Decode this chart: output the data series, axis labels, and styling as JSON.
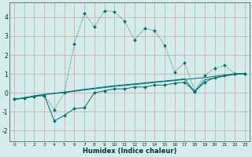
{
  "xlabel": "Humidex (Indice chaleur)",
  "bg_color": "#d4ecea",
  "grid_color": "#c8a8a8",
  "line_color": "#007070",
  "xlim": [
    -0.5,
    23.5
  ],
  "ylim": [
    -2.6,
    4.8
  ],
  "xticks": [
    0,
    1,
    2,
    3,
    4,
    5,
    6,
    7,
    8,
    9,
    10,
    11,
    12,
    13,
    14,
    15,
    16,
    17,
    18,
    19,
    20,
    21,
    22,
    23
  ],
  "yticks": [
    -2,
    -1,
    0,
    1,
    2,
    3,
    4
  ],
  "s1_x": [
    0,
    1,
    2,
    3,
    4,
    5,
    6,
    7,
    8,
    9,
    10,
    11,
    12,
    13,
    14,
    15,
    16,
    17,
    18,
    19,
    20,
    21,
    22,
    23
  ],
  "s1_y": [
    -0.35,
    -0.3,
    -0.2,
    -0.15,
    -0.9,
    0.0,
    2.6,
    4.2,
    3.5,
    4.35,
    4.3,
    3.8,
    2.8,
    3.4,
    3.3,
    2.5,
    1.1,
    1.6,
    0.1,
    0.9,
    1.3,
    1.45,
    1.0,
    1.0
  ],
  "s2_x": [
    0,
    1,
    2,
    3,
    4,
    5,
    6,
    7,
    8,
    9,
    10,
    11,
    12,
    13,
    14,
    15,
    16,
    17,
    18,
    19,
    20,
    21,
    22,
    23
  ],
  "s2_y": [
    -0.35,
    -0.3,
    -0.2,
    -0.15,
    -1.5,
    -1.2,
    -0.85,
    -0.8,
    0.0,
    0.1,
    0.2,
    0.2,
    0.3,
    0.3,
    0.4,
    0.4,
    0.5,
    0.55,
    0.05,
    0.55,
    0.8,
    0.9,
    1.0,
    1.0
  ],
  "s3_x": [
    0,
    1,
    2,
    3,
    4,
    5,
    6,
    7,
    8,
    9,
    10,
    11,
    12,
    13,
    14,
    15,
    16,
    17,
    18,
    19,
    20,
    21,
    22,
    23
  ],
  "s3_y": [
    -0.35,
    -0.28,
    -0.18,
    -0.1,
    -0.05,
    0.0,
    0.07,
    0.14,
    0.2,
    0.27,
    0.33,
    0.38,
    0.43,
    0.48,
    0.54,
    0.59,
    0.64,
    0.7,
    0.75,
    0.8,
    0.87,
    0.93,
    1.0,
    1.0
  ],
  "s4_x": [
    0,
    1,
    2,
    3,
    4,
    5,
    6,
    7,
    8,
    9,
    10,
    11,
    12,
    13,
    14,
    15,
    16,
    17,
    18,
    19,
    20,
    21,
    22,
    23
  ],
  "s4_y": [
    -0.35,
    -0.27,
    -0.17,
    -0.09,
    -0.03,
    0.03,
    0.1,
    0.18,
    0.24,
    0.31,
    0.37,
    0.42,
    0.47,
    0.52,
    0.57,
    0.62,
    0.67,
    0.73,
    0.05,
    0.68,
    0.78,
    0.88,
    0.97,
    1.0
  ]
}
